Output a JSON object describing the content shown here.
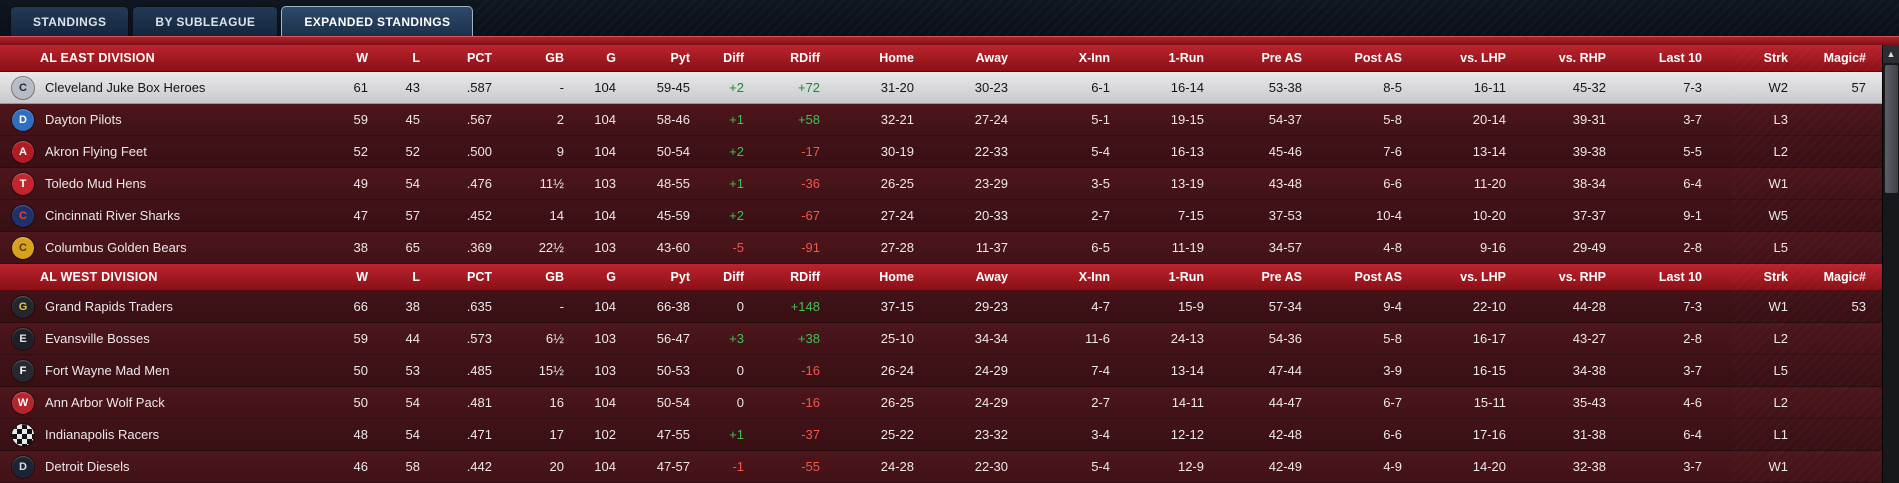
{
  "tabs": [
    {
      "label": "STANDINGS",
      "active": false
    },
    {
      "label": "BY SUBLEAGUE",
      "active": false
    },
    {
      "label": "EXPANDED STANDINGS",
      "active": true
    }
  ],
  "columns": [
    "W",
    "L",
    "PCT",
    "GB",
    "G",
    "Pyt",
    "Diff",
    "RDiff",
    "Home",
    "Away",
    "X-Inn",
    "1-Run",
    "Pre AS",
    "Post AS",
    "vs. LHP",
    "vs. RHP",
    "Last 10",
    "Strk",
    "Magic#"
  ],
  "divisions": [
    {
      "name": "AL EAST DIVISION",
      "teams": [
        {
          "name": "Cleveland Juke Box Heroes",
          "highlight": true,
          "icon": {
            "text": "C",
            "bg": "#b7bcc4",
            "fg": "#222a36",
            "checker": false
          },
          "w": "61",
          "l": "43",
          "pct": ".587",
          "gb": "-",
          "g": "104",
          "pyt": "59-45",
          "diff": "+2",
          "rdiff": "+72",
          "home": "31-20",
          "away": "30-23",
          "xinn": "6-1",
          "onerun": "16-14",
          "preas": "53-38",
          "postas": "8-5",
          "vslhp": "16-11",
          "vsrhp": "45-32",
          "last10": "7-3",
          "strk": "W2",
          "magic": "57"
        },
        {
          "name": "Dayton Pilots",
          "highlight": false,
          "icon": {
            "text": "D",
            "bg": "#2e6fc0",
            "fg": "#ffffff",
            "checker": false
          },
          "w": "59",
          "l": "45",
          "pct": ".567",
          "gb": "2",
          "g": "104",
          "pyt": "58-46",
          "diff": "+1",
          "rdiff": "+58",
          "home": "32-21",
          "away": "27-24",
          "xinn": "5-1",
          "onerun": "19-15",
          "preas": "54-37",
          "postas": "5-8",
          "vslhp": "20-14",
          "vsrhp": "39-31",
          "last10": "3-7",
          "strk": "L3",
          "magic": ""
        },
        {
          "name": "Akron  Flying Feet",
          "highlight": false,
          "icon": {
            "text": "A",
            "bg": "#b01c22",
            "fg": "#ffffff",
            "checker": false
          },
          "w": "52",
          "l": "52",
          "pct": ".500",
          "gb": "9",
          "g": "104",
          "pyt": "50-54",
          "diff": "+2",
          "rdiff": "-17",
          "home": "30-19",
          "away": "22-33",
          "xinn": "5-4",
          "onerun": "16-13",
          "preas": "45-46",
          "postas": "7-6",
          "vslhp": "13-14",
          "vsrhp": "39-38",
          "last10": "5-5",
          "strk": "L2",
          "magic": ""
        },
        {
          "name": "Toledo  Mud Hens",
          "highlight": false,
          "icon": {
            "text": "T",
            "bg": "#c0262c",
            "fg": "#ffffff",
            "checker": false
          },
          "w": "49",
          "l": "54",
          "pct": ".476",
          "gb": "11½",
          "g": "103",
          "pyt": "48-55",
          "diff": "+1",
          "rdiff": "-36",
          "home": "26-25",
          "away": "23-29",
          "xinn": "3-5",
          "onerun": "13-19",
          "preas": "43-48",
          "postas": "6-6",
          "vslhp": "11-20",
          "vsrhp": "38-34",
          "last10": "6-4",
          "strk": "W1",
          "magic": ""
        },
        {
          "name": "Cincinnati River Sharks",
          "highlight": false,
          "icon": {
            "text": "C",
            "bg": "#20306b",
            "fg": "#e04438",
            "checker": false
          },
          "w": "47",
          "l": "57",
          "pct": ".452",
          "gb": "14",
          "g": "104",
          "pyt": "45-59",
          "diff": "+2",
          "rdiff": "-67",
          "home": "27-24",
          "away": "20-33",
          "xinn": "2-7",
          "onerun": "7-15",
          "preas": "37-53",
          "postas": "10-4",
          "vslhp": "10-20",
          "vsrhp": "37-37",
          "last10": "9-1",
          "strk": "W5",
          "magic": ""
        },
        {
          "name": "Columbus Golden Bears",
          "highlight": false,
          "icon": {
            "text": "C",
            "bg": "#d8a11e",
            "fg": "#5a3a00",
            "checker": false
          },
          "w": "38",
          "l": "65",
          "pct": ".369",
          "gb": "22½",
          "g": "103",
          "pyt": "43-60",
          "diff": "-5",
          "rdiff": "-91",
          "home": "27-28",
          "away": "11-37",
          "xinn": "6-5",
          "onerun": "11-19",
          "preas": "34-57",
          "postas": "4-8",
          "vslhp": "9-16",
          "vsrhp": "29-49",
          "last10": "2-8",
          "strk": "L5",
          "magic": ""
        }
      ]
    },
    {
      "name": "AL WEST DIVISION",
      "teams": [
        {
          "name": "Grand Rapids Traders",
          "highlight": false,
          "icon": {
            "text": "G",
            "bg": "#23262c",
            "fg": "#e8c35a",
            "checker": false
          },
          "w": "66",
          "l": "38",
          "pct": ".635",
          "gb": "-",
          "g": "104",
          "pyt": "66-38",
          "diff": "0",
          "rdiff": "+148",
          "home": "37-15",
          "away": "29-23",
          "xinn": "4-7",
          "onerun": "15-9",
          "preas": "57-34",
          "postas": "9-4",
          "vslhp": "22-10",
          "vsrhp": "44-28",
          "last10": "7-3",
          "strk": "W1",
          "magic": "53"
        },
        {
          "name": "Evansville Bosses",
          "highlight": false,
          "icon": {
            "text": "E",
            "bg": "#1d2026",
            "fg": "#e0e3e8",
            "checker": false
          },
          "w": "59",
          "l": "44",
          "pct": ".573",
          "gb": "6½",
          "g": "103",
          "pyt": "56-47",
          "diff": "+3",
          "rdiff": "+38",
          "home": "25-10",
          "away": "34-34",
          "xinn": "11-6",
          "onerun": "24-13",
          "preas": "54-36",
          "postas": "5-8",
          "vslhp": "16-17",
          "vsrhp": "43-27",
          "last10": "2-8",
          "strk": "L2",
          "magic": ""
        },
        {
          "name": "Fort Wayne Mad Men",
          "highlight": false,
          "icon": {
            "text": "F",
            "bg": "#26292f",
            "fg": "#ffffff",
            "checker": false
          },
          "w": "50",
          "l": "53",
          "pct": ".485",
          "gb": "15½",
          "g": "103",
          "pyt": "50-53",
          "diff": "0",
          "rdiff": "-16",
          "home": "26-24",
          "away": "24-29",
          "xinn": "7-4",
          "onerun": "13-14",
          "preas": "47-44",
          "postas": "3-9",
          "vslhp": "16-15",
          "vsrhp": "34-38",
          "last10": "3-7",
          "strk": "L5",
          "magic": ""
        },
        {
          "name": "Ann Arbor Wolf Pack",
          "highlight": false,
          "icon": {
            "text": "W",
            "bg": "#b6252b",
            "fg": "#ffffff",
            "checker": false
          },
          "w": "50",
          "l": "54",
          "pct": ".481",
          "gb": "16",
          "g": "104",
          "pyt": "50-54",
          "diff": "0",
          "rdiff": "-16",
          "home": "26-25",
          "away": "24-29",
          "xinn": "2-7",
          "onerun": "14-11",
          "preas": "44-47",
          "postas": "6-7",
          "vslhp": "15-11",
          "vsrhp": "35-43",
          "last10": "4-6",
          "strk": "L2",
          "magic": ""
        },
        {
          "name": "Indianapolis Racers",
          "highlight": false,
          "icon": {
            "text": "",
            "bg": "#121216",
            "fg": "#ffffff",
            "checker": true
          },
          "w": "48",
          "l": "54",
          "pct": ".471",
          "gb": "17",
          "g": "102",
          "pyt": "47-55",
          "diff": "+1",
          "rdiff": "-37",
          "home": "25-22",
          "away": "23-32",
          "xinn": "3-4",
          "onerun": "12-12",
          "preas": "42-48",
          "postas": "6-6",
          "vslhp": "17-16",
          "vsrhp": "31-38",
          "last10": "6-4",
          "strk": "L1",
          "magic": ""
        },
        {
          "name": "Detroit Diesels",
          "highlight": false,
          "icon": {
            "text": "D",
            "bg": "#1b2433",
            "fg": "#d8dbe0",
            "checker": false
          },
          "w": "46",
          "l": "58",
          "pct": ".442",
          "gb": "20",
          "g": "104",
          "pyt": "47-57",
          "diff": "-1",
          "rdiff": "-55",
          "home": "24-28",
          "away": "22-30",
          "xinn": "5-4",
          "onerun": "12-9",
          "preas": "42-49",
          "postas": "4-9",
          "vslhp": "14-20",
          "vsrhp": "32-38",
          "last10": "3-7",
          "strk": "W1",
          "magic": ""
        }
      ]
    }
  ],
  "scrollbar": {
    "up_arrow": "▲"
  }
}
